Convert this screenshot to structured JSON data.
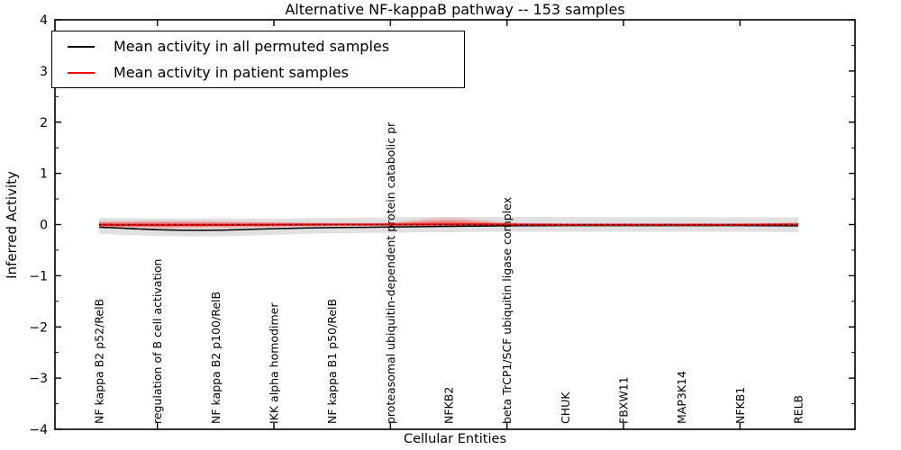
{
  "chart_data": {
    "type": "line",
    "title": "Alternative NF-kappaB pathway -- 153 samples",
    "xlabel": "Cellular Entities",
    "ylabel": "Inferred Activity",
    "ylim": [
      -4,
      4
    ],
    "yticks": [
      -4,
      -3,
      -2,
      -1,
      0,
      1,
      2,
      3,
      4
    ],
    "y_minor_tick_step": 0.5,
    "xtick_positions": [
      2,
      4,
      6,
      8,
      10,
      12
    ],
    "grid": false,
    "legend_position": "upper left",
    "zero_line": {
      "y": 0,
      "style": "dotted",
      "color": "#000000"
    },
    "categories": [
      "NF kappa B2 p52/RelB",
      "regulation of B cell activation",
      "NF kappa B2 p100/RelB",
      "IKK alpha homodimer",
      "NF kappa B1 p50/RelB",
      "proteasomal ubiquitin-dependent protein catabolic pr",
      "NFKB2",
      "beta TrCP1/SCF ubiquitin ligase complex",
      "CHUK",
      "FBXW11",
      "MAP3K14",
      "NFKB1",
      "RELB"
    ],
    "series": [
      {
        "name": "Mean activity in all permuted samples",
        "color": "#000000",
        "values": [
          -0.05,
          -0.1,
          -0.11,
          -0.08,
          -0.06,
          -0.05,
          -0.035,
          -0.025,
          -0.02,
          -0.02,
          -0.02,
          -0.02,
          -0.025
        ]
      },
      {
        "name": "Mean activity in patient samples",
        "color": "#ff0000",
        "values": [
          -0.005,
          -0.01,
          -0.008,
          -0.005,
          0.0,
          0.0,
          0.005,
          0.0,
          -0.003,
          -0.003,
          -0.003,
          -0.003,
          0.0
        ]
      }
    ],
    "bands": [
      {
        "name": "permuted-range",
        "color": "rgba(0,0,0,0.12)",
        "upper": [
          0.13,
          0.12,
          0.12,
          0.12,
          0.13,
          0.14,
          0.15,
          0.15,
          0.15,
          0.14,
          0.14,
          0.14,
          0.14
        ],
        "lower": [
          -0.18,
          -0.22,
          -0.23,
          -0.2,
          -0.17,
          -0.16,
          -0.15,
          -0.14,
          -0.14,
          -0.14,
          -0.14,
          -0.14,
          -0.15
        ]
      },
      {
        "name": "patient-range-outer",
        "color": "rgba(255,0,0,0.10)",
        "upper": [
          0.07,
          0.08,
          0.07,
          0.06,
          0.04,
          0.05,
          0.14,
          0.05,
          0.03,
          0.03,
          0.03,
          0.03,
          0.05
        ],
        "lower": [
          -0.07,
          -0.08,
          -0.07,
          -0.06,
          -0.04,
          -0.04,
          -0.05,
          -0.03,
          -0.03,
          -0.03,
          -0.03,
          -0.03,
          -0.045
        ]
      },
      {
        "name": "patient-range-mid",
        "color": "rgba(255,0,0,0.18)",
        "upper": [
          0.05,
          0.055,
          0.05,
          0.04,
          0.03,
          0.035,
          0.1,
          0.035,
          0.02,
          0.02,
          0.02,
          0.02,
          0.035
        ],
        "lower": [
          -0.05,
          -0.055,
          -0.05,
          -0.04,
          -0.03,
          -0.03,
          -0.035,
          -0.02,
          -0.02,
          -0.02,
          -0.02,
          -0.02,
          -0.03
        ]
      },
      {
        "name": "patient-range-inner",
        "color": "rgba(255,0,0,0.30)",
        "upper": [
          0.035,
          0.04,
          0.035,
          0.03,
          0.02,
          0.025,
          0.06,
          0.025,
          0.015,
          0.015,
          0.015,
          0.015,
          0.025
        ],
        "lower": [
          -0.035,
          -0.04,
          -0.035,
          -0.03,
          -0.02,
          -0.02,
          -0.025,
          -0.015,
          -0.015,
          -0.015,
          -0.015,
          -0.015,
          -0.02
        ]
      }
    ]
  },
  "colors": {
    "frame": "#000000",
    "background": "#ffffff",
    "permuted_line": "#000000",
    "patient_line": "#ff0000"
  }
}
